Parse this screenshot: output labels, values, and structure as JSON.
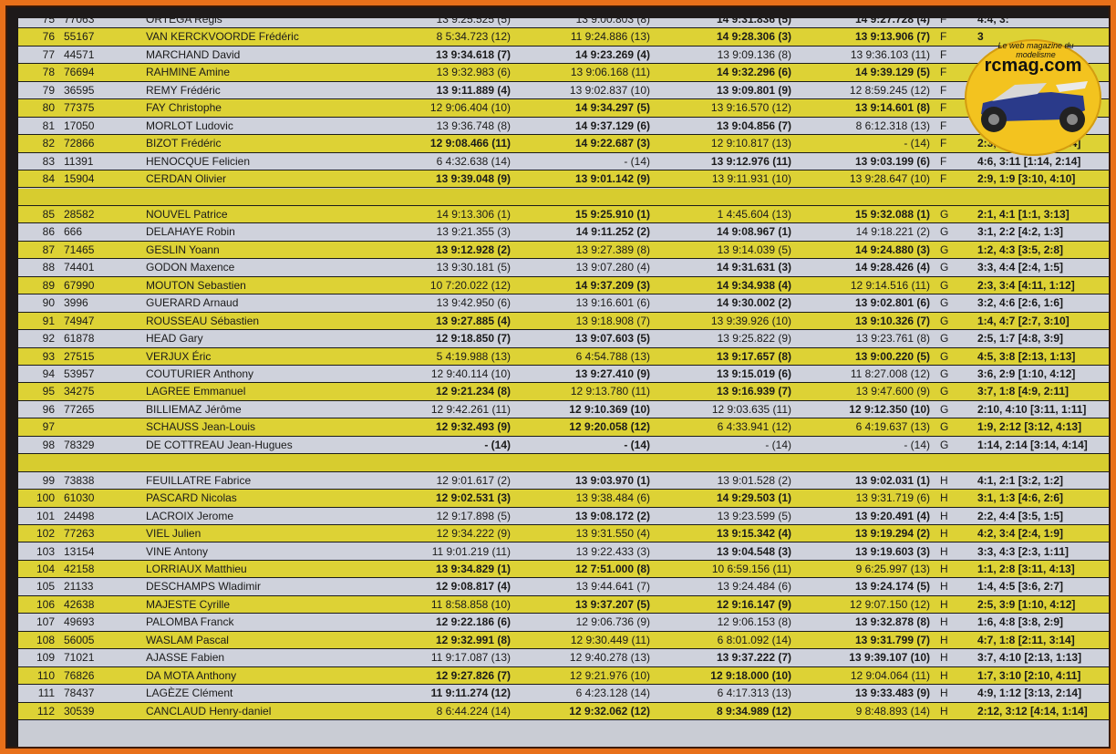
{
  "rows": [
    {
      "sep": false,
      "color": "white",
      "pos": "75",
      "num": "77063",
      "name": "ORTEGA Regis",
      "r1": "13 9:25.525 (5)",
      "r1b": false,
      "r2": "13 9:00.803 (8)",
      "r2b": false,
      "r3": "14 9:31.836 (5)",
      "r3b": true,
      "r4": "14 9:27.728 (4)",
      "r4b": true,
      "grp": "F",
      "res": "4:4, 3:"
    },
    {
      "sep": false,
      "color": "yellow",
      "pos": "76",
      "num": "55167",
      "name": "VAN KERCKVOORDE Frédéric",
      "r1": "8 5:34.723 (12)",
      "r1b": false,
      "r2": "11 9:24.886 (13)",
      "r2b": false,
      "r3": "14 9:28.306 (3)",
      "r3b": true,
      "r4": "13 9:13.906 (7)",
      "r4b": true,
      "grp": "F",
      "res": "3"
    },
    {
      "sep": false,
      "color": "white",
      "pos": "77",
      "num": "44571",
      "name": "MARCHAND David",
      "r1": "13 9:34.618 (7)",
      "r1b": true,
      "r2": "14 9:23.269 (4)",
      "r2b": true,
      "r3": "13 9:09.136 (8)",
      "r3b": false,
      "r4": "13 9:36.103 (11)",
      "r4b": false,
      "grp": "F",
      "res": ""
    },
    {
      "sep": false,
      "color": "yellow",
      "pos": "78",
      "num": "76694",
      "name": "RAHMINE Amine",
      "r1": "13 9:32.983 (6)",
      "r1b": false,
      "r2": "13 9:06.168 (11)",
      "r2b": false,
      "r3": "14 9:32.296 (6)",
      "r3b": true,
      "r4": "14 9:39.129 (5)",
      "r4b": true,
      "grp": "F",
      "res": ""
    },
    {
      "sep": false,
      "color": "white",
      "pos": "79",
      "num": "36595",
      "name": "REMY Frédéric",
      "r1": "13 9:11.889 (4)",
      "r1b": true,
      "r2": "13 9:02.837 (10)",
      "r2b": false,
      "r3": "13 9:09.801 (9)",
      "r3b": true,
      "r4": "12 8:59.245 (12)",
      "r4b": false,
      "grp": "F",
      "res": ""
    },
    {
      "sep": false,
      "color": "yellow",
      "pos": "80",
      "num": "77375",
      "name": "FAY Christophe",
      "r1": "12 9:06.404 (10)",
      "r1b": false,
      "r2": "14 9:34.297 (5)",
      "r2b": true,
      "r3": "13 9:16.570 (12)",
      "r3b": false,
      "r4": "13 9:14.601 (8)",
      "r4b": true,
      "grp": "F",
      "res": ""
    },
    {
      "sep": false,
      "color": "white",
      "pos": "81",
      "num": "17050",
      "name": "MORLOT Ludovic",
      "r1": "13 9:36.748 (8)",
      "r1b": false,
      "r2": "14 9:37.129 (6)",
      "r2b": true,
      "r3": "13 9:04.856 (7)",
      "r3b": true,
      "r4": "8 6:12.318 (13)",
      "r4b": false,
      "grp": "F",
      "res": ""
    },
    {
      "sep": false,
      "color": "yellow",
      "pos": "82",
      "num": "72866",
      "name": "BIZOT Frédéric",
      "r1": "12 9:08.466 (11)",
      "r1b": true,
      "r2": "14 9:22.687 (3)",
      "r2b": true,
      "r3": "12 9:10.817 (13)",
      "r3b": false,
      "r4": "- (14)",
      "r4b": false,
      "grp": "F",
      "res": "2:3, 1:11 [1:13, 4:14]"
    },
    {
      "sep": false,
      "color": "white",
      "pos": "83",
      "num": "11391",
      "name": "HENOCQUE Felicien",
      "r1": "6 4:32.638 (14)",
      "r1b": false,
      "r2": "- (14)",
      "r2b": false,
      "r3": "13 9:12.976 (11)",
      "r3b": true,
      "r4": "13 9:03.199 (6)",
      "r4b": true,
      "grp": "F",
      "res": "4:6, 3:11 [1:14, 2:14]"
    },
    {
      "sep": false,
      "color": "yellow",
      "pos": "84",
      "num": "15904",
      "name": "CERDAN Olivier",
      "r1": "13 9:39.048 (9)",
      "r1b": true,
      "r2": "13 9:01.142 (9)",
      "r2b": true,
      "r3": "13 9:11.931 (10)",
      "r3b": false,
      "r4": "13 9:28.647 (10)",
      "r4b": false,
      "grp": "F",
      "res": "2:9, 1:9 [3:10, 4:10]"
    },
    {
      "sep": true,
      "color": "sep",
      "pos": "",
      "num": "",
      "name": "",
      "r1": "",
      "r1b": false,
      "r2": "",
      "r2b": false,
      "r3": "",
      "r3b": false,
      "r4": "",
      "r4b": false,
      "grp": "",
      "res": ""
    },
    {
      "sep": false,
      "color": "yellow",
      "pos": "85",
      "num": "28582",
      "name": "NOUVEL Patrice",
      "r1": "14 9:13.306 (1)",
      "r1b": false,
      "r2": "15 9:25.910 (1)",
      "r2b": true,
      "r3": "1 4:45.604 (13)",
      "r3b": false,
      "r4": "15 9:32.088 (1)",
      "r4b": true,
      "grp": "G",
      "res": "2:1, 4:1 [1:1, 3:13]"
    },
    {
      "sep": false,
      "color": "white",
      "pos": "86",
      "num": "666",
      "name": "DELAHAYE Robin",
      "r1": "13 9:21.355 (3)",
      "r1b": false,
      "r2": "14 9:11.252 (2)",
      "r2b": true,
      "r3": "14 9:08.967 (1)",
      "r3b": true,
      "r4": "14 9:18.221 (2)",
      "r4b": false,
      "grp": "G",
      "res": "3:1, 2:2 [4:2, 1:3]"
    },
    {
      "sep": false,
      "color": "yellow",
      "pos": "87",
      "num": "71465",
      "name": "GESLIN Yoann",
      "r1": "13 9:12.928 (2)",
      "r1b": true,
      "r2": "13 9:27.389 (8)",
      "r2b": false,
      "r3": "13 9:14.039 (5)",
      "r3b": false,
      "r4": "14 9:24.880 (3)",
      "r4b": true,
      "grp": "G",
      "res": "1:2, 4:3 [3:5, 2:8]"
    },
    {
      "sep": false,
      "color": "white",
      "pos": "88",
      "num": "74401",
      "name": "GODON Maxence",
      "r1": "13 9:30.181 (5)",
      "r1b": false,
      "r2": "13 9:07.280 (4)",
      "r2b": false,
      "r3": "14 9:31.631 (3)",
      "r3b": true,
      "r4": "14 9:28.426 (4)",
      "r4b": true,
      "grp": "G",
      "res": "3:3, 4:4 [2:4, 1:5]"
    },
    {
      "sep": false,
      "color": "yellow",
      "pos": "89",
      "num": "67990",
      "name": "MOUTON Sebastien",
      "r1": "10 7:20.022 (12)",
      "r1b": false,
      "r2": "14 9:37.209 (3)",
      "r2b": true,
      "r3": "14 9:34.938 (4)",
      "r3b": true,
      "r4": "12 9:14.516 (11)",
      "r4b": false,
      "grp": "G",
      "res": "2:3, 3:4 [4:11, 1:12]"
    },
    {
      "sep": false,
      "color": "white",
      "pos": "90",
      "num": "3996",
      "name": "GUERARD Arnaud",
      "r1": "13 9:42.950 (6)",
      "r1b": false,
      "r2": "13 9:16.601 (6)",
      "r2b": false,
      "r3": "14 9:30.002 (2)",
      "r3b": true,
      "r4": "13 9:02.801 (6)",
      "r4b": true,
      "grp": "G",
      "res": "3:2, 4:6 [2:6, 1:6]"
    },
    {
      "sep": false,
      "color": "yellow",
      "pos": "91",
      "num": "74947",
      "name": "ROUSSEAU Sébastien",
      "r1": "13 9:27.885 (4)",
      "r1b": true,
      "r2": "13 9:18.908 (7)",
      "r2b": false,
      "r3": "13 9:39.926 (10)",
      "r3b": false,
      "r4": "13 9:10.326 (7)",
      "r4b": true,
      "grp": "G",
      "res": "1:4, 4:7 [2:7, 3:10]"
    },
    {
      "sep": false,
      "color": "white",
      "pos": "92",
      "num": "61878",
      "name": "HEAD Gary",
      "r1": "12 9:18.850 (7)",
      "r1b": true,
      "r2": "13 9:07.603 (5)",
      "r2b": true,
      "r3": "13 9:25.822 (9)",
      "r3b": false,
      "r4": "13 9:23.761 (8)",
      "r4b": false,
      "grp": "G",
      "res": "2:5, 1:7 [4:8, 3:9]"
    },
    {
      "sep": false,
      "color": "yellow",
      "pos": "93",
      "num": "27515",
      "name": "VERJUX Éric",
      "r1": "5 4:19.988 (13)",
      "r1b": false,
      "r2": "6 4:54.788 (13)",
      "r2b": false,
      "r3": "13 9:17.657 (8)",
      "r3b": true,
      "r4": "13 9:00.220 (5)",
      "r4b": true,
      "grp": "G",
      "res": "4:5, 3:8 [2:13, 1:13]"
    },
    {
      "sep": false,
      "color": "white",
      "pos": "94",
      "num": "53957",
      "name": "COUTURIER Anthony",
      "r1": "12 9:40.114 (10)",
      "r1b": false,
      "r2": "13 9:27.410 (9)",
      "r2b": true,
      "r3": "13 9:15.019 (6)",
      "r3b": true,
      "r4": "11 8:27.008 (12)",
      "r4b": false,
      "grp": "G",
      "res": "3:6, 2:9 [1:10, 4:12]"
    },
    {
      "sep": false,
      "color": "yellow",
      "pos": "95",
      "num": "34275",
      "name": "LAGREE Emmanuel",
      "r1": "12 9:21.234 (8)",
      "r1b": true,
      "r2": "12 9:13.780 (11)",
      "r2b": false,
      "r3": "13 9:16.939 (7)",
      "r3b": true,
      "r4": "13 9:47.600 (9)",
      "r4b": false,
      "grp": "G",
      "res": "3:7, 1:8 [4:9, 2:11]"
    },
    {
      "sep": false,
      "color": "white",
      "pos": "96",
      "num": "77265",
      "name": "BILLIEMAZ Jérôme",
      "r1": "12 9:42.261 (11)",
      "r1b": false,
      "r2": "12 9:10.369 (10)",
      "r2b": true,
      "r3": "12 9:03.635 (11)",
      "r3b": false,
      "r4": "12 9:12.350 (10)",
      "r4b": true,
      "grp": "G",
      "res": "2:10, 4:10 [3:11, 1:11]"
    },
    {
      "sep": false,
      "color": "yellow",
      "pos": "97",
      "num": "",
      "name": "SCHAUSS Jean-Louis",
      "r1": "12 9:32.493 (9)",
      "r1b": true,
      "r2": "12 9:20.058 (12)",
      "r2b": true,
      "r3": "6 4:33.941 (12)",
      "r3b": false,
      "r4": "6 4:19.637 (13)",
      "r4b": false,
      "grp": "G",
      "res": "1:9, 2:12 [3:12, 4:13]"
    },
    {
      "sep": false,
      "color": "white",
      "pos": "98",
      "num": "78329",
      "name": "DE COTTREAU Jean-Hugues",
      "r1": "- (14)",
      "r1b": true,
      "r2": "- (14)",
      "r2b": true,
      "r3": "- (14)",
      "r3b": false,
      "r4": "- (14)",
      "r4b": false,
      "grp": "G",
      "res": "1:14, 2:14 [3:14, 4:14]"
    },
    {
      "sep": true,
      "color": "sep",
      "pos": "",
      "num": "",
      "name": "",
      "r1": "",
      "r1b": false,
      "r2": "",
      "r2b": false,
      "r3": "",
      "r3b": false,
      "r4": "",
      "r4b": false,
      "grp": "",
      "res": ""
    },
    {
      "sep": false,
      "color": "white",
      "pos": "99",
      "num": "73838",
      "name": "FEUILLATRE Fabrice",
      "r1": "12 9:01.617 (2)",
      "r1b": false,
      "r2": "13 9:03.970 (1)",
      "r2b": true,
      "r3": "13 9:01.528 (2)",
      "r3b": false,
      "r4": "13 9:02.031 (1)",
      "r4b": true,
      "grp": "H",
      "res": "4:1, 2:1 [3:2, 1:2]"
    },
    {
      "sep": false,
      "color": "yellow",
      "pos": "100",
      "num": "61030",
      "name": "PASCARD Nicolas",
      "r1": "12 9:02.531 (3)",
      "r1b": true,
      "r2": "13 9:38.484 (6)",
      "r2b": false,
      "r3": "14 9:29.503 (1)",
      "r3b": true,
      "r4": "13 9:31.719 (6)",
      "r4b": false,
      "grp": "H",
      "res": "3:1, 1:3 [4:6, 2:6]"
    },
    {
      "sep": false,
      "color": "white",
      "pos": "101",
      "num": "24498",
      "name": "LACROIX Jerome",
      "r1": "12 9:17.898 (5)",
      "r1b": false,
      "r2": "13 9:08.172 (2)",
      "r2b": true,
      "r3": "13 9:23.599 (5)",
      "r3b": false,
      "r4": "13 9:20.491 (4)",
      "r4b": true,
      "grp": "H",
      "res": "2:2, 4:4 [3:5, 1:5]"
    },
    {
      "sep": false,
      "color": "yellow",
      "pos": "102",
      "num": "77263",
      "name": "VIEL Julien",
      "r1": "12 9:34.222 (9)",
      "r1b": false,
      "r2": "13 9:31.550 (4)",
      "r2b": false,
      "r3": "13 9:15.342 (4)",
      "r3b": true,
      "r4": "13 9:19.294 (2)",
      "r4b": true,
      "grp": "H",
      "res": "4:2, 3:4 [2:4, 1:9]"
    },
    {
      "sep": false,
      "color": "white",
      "pos": "103",
      "num": "13154",
      "name": "VINE Antony",
      "r1": "11 9:01.219 (11)",
      "r1b": false,
      "r2": "13 9:22.433 (3)",
      "r2b": false,
      "r3": "13 9:04.548 (3)",
      "r3b": true,
      "r4": "13 9:19.603 (3)",
      "r4b": true,
      "grp": "H",
      "res": "3:3, 4:3 [2:3, 1:11]"
    },
    {
      "sep": false,
      "color": "yellow",
      "pos": "104",
      "num": "42158",
      "name": "LORRIAUX Matthieu",
      "r1": "13 9:34.829 (1)",
      "r1b": true,
      "r2": "12 7:51.000 (8)",
      "r2b": true,
      "r3": "10 6:59.156 (11)",
      "r3b": false,
      "r4": "9 6:25.997 (13)",
      "r4b": false,
      "grp": "H",
      "res": "1:1, 2:8 [3:11, 4:13]"
    },
    {
      "sep": false,
      "color": "white",
      "pos": "105",
      "num": "21133",
      "name": "DESCHAMPS Wladimir",
      "r1": "12 9:08.817 (4)",
      "r1b": true,
      "r2": "13 9:44.641 (7)",
      "r2b": false,
      "r3": "13 9:24.484 (6)",
      "r3b": false,
      "r4": "13 9:24.174 (5)",
      "r4b": true,
      "grp": "H",
      "res": "1:4, 4:5 [3:6, 2:7]"
    },
    {
      "sep": false,
      "color": "yellow",
      "pos": "106",
      "num": "42638",
      "name": "MAJESTE Cyrille",
      "r1": "11 8:58.858 (10)",
      "r1b": false,
      "r2": "13 9:37.207 (5)",
      "r2b": true,
      "r3": "12 9:16.147 (9)",
      "r3b": true,
      "r4": "12 9:07.150 (12)",
      "r4b": false,
      "grp": "H",
      "res": "2:5, 3:9 [1:10, 4:12]"
    },
    {
      "sep": false,
      "color": "white",
      "pos": "107",
      "num": "49693",
      "name": "PALOMBA Franck",
      "r1": "12 9:22.186 (6)",
      "r1b": true,
      "r2": "12 9:06.736 (9)",
      "r2b": false,
      "r3": "12 9:06.153 (8)",
      "r3b": false,
      "r4": "13 9:32.878 (8)",
      "r4b": true,
      "grp": "H",
      "res": "1:6, 4:8 [3:8, 2:9]"
    },
    {
      "sep": false,
      "color": "yellow",
      "pos": "108",
      "num": "56005",
      "name": "WASLAM Pascal",
      "r1": "12 9:32.991 (8)",
      "r1b": true,
      "r2": "12 9:30.449 (11)",
      "r2b": false,
      "r3": "6 8:01.092 (14)",
      "r3b": false,
      "r4": "13 9:31.799 (7)",
      "r4b": true,
      "grp": "H",
      "res": "4:7, 1:8 [2:11, 3:14]"
    },
    {
      "sep": false,
      "color": "white",
      "pos": "109",
      "num": "71021",
      "name": "AJASSE Fabien",
      "r1": "11 9:17.087 (13)",
      "r1b": false,
      "r2": "12 9:40.278 (13)",
      "r2b": false,
      "r3": "13 9:37.222 (7)",
      "r3b": true,
      "r4": "13 9:39.107 (10)",
      "r4b": true,
      "grp": "H",
      "res": "3:7, 4:10 [2:13, 1:13]"
    },
    {
      "sep": false,
      "color": "yellow",
      "pos": "110",
      "num": "76826",
      "name": "DA MOTA Anthony",
      "r1": "12 9:27.826 (7)",
      "r1b": true,
      "r2": "12 9:21.976 (10)",
      "r2b": false,
      "r3": "12 9:18.000 (10)",
      "r3b": true,
      "r4": "12 9:04.064 (11)",
      "r4b": false,
      "grp": "H",
      "res": "1:7, 3:10 [2:10, 4:11]"
    },
    {
      "sep": false,
      "color": "white",
      "pos": "111",
      "num": "78437",
      "name": "LAGÈZE Clément",
      "r1": "11 9:11.274 (12)",
      "r1b": true,
      "r2": "6 4:23.128 (14)",
      "r2b": false,
      "r3": "6 4:17.313 (13)",
      "r3b": false,
      "r4": "13 9:33.483 (9)",
      "r4b": true,
      "grp": "H",
      "res": "4:9, 1:12 [3:13, 2:14]"
    },
    {
      "sep": false,
      "color": "yellow",
      "pos": "112",
      "num": "30539",
      "name": "CANCLAUD Henry-daniel",
      "r1": "8 6:44.224 (14)",
      "r1b": false,
      "r2": "12 9:32.062 (12)",
      "r2b": true,
      "r3": "8 9:34.989 (12)",
      "r3b": true,
      "r4": "9 8:48.893 (14)",
      "r4b": false,
      "grp": "H",
      "res": "2:12, 3:12 [4:14, 1:14]"
    }
  ],
  "logo": {
    "brand": "rcmag.com",
    "tagline": "Le web magazine du modelisme",
    "bg": "#f3c31f"
  },
  "colors": {
    "yellow_row": "#ddd235",
    "white_row": "#cfd2dc",
    "border": "#e8701a"
  }
}
